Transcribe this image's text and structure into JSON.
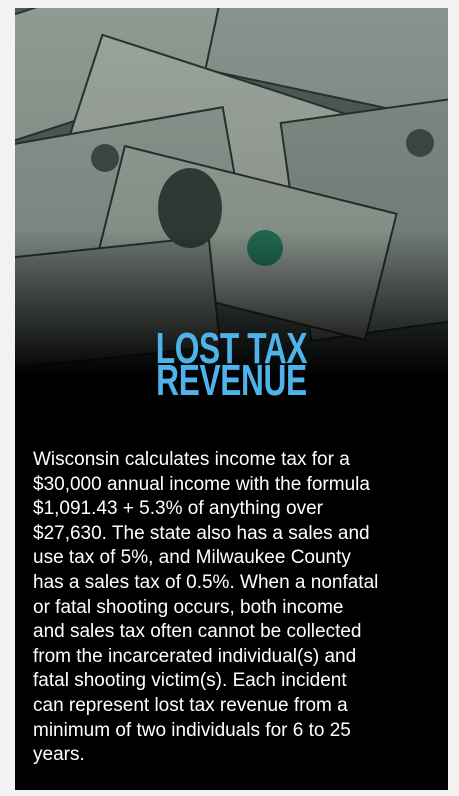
{
  "title_lines": [
    "LOST TAX",
    "REVENUE"
  ],
  "body_lines": [
    "Wisconsin calculates income tax for a",
    "$30,000 annual income with the formula",
    "$1,091.43 + 5.3% of anything over",
    "$27,630. The state also has a sales and",
    "use tax of 5%, and Milwaukee County",
    "has a sales tax of 0.5%. When a nonfatal",
    "or fatal shooting occurs, both income",
    "and sales tax often cannot be collected",
    "from the incarcerated individual(s) and",
    "fatal shooting victim(s). Each incident",
    "can represent lost tax revenue from a",
    "minimum of two individuals for 6 to 25",
    "years."
  ]
}
